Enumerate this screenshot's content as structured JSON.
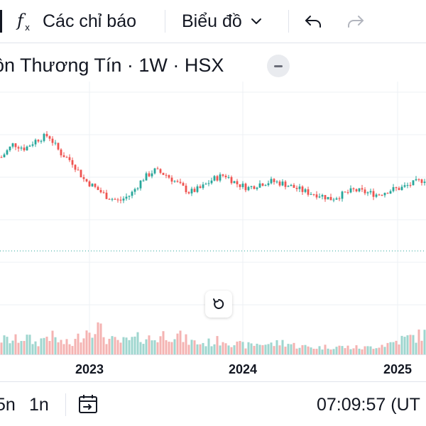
{
  "toolbar": {
    "indicators_label": "Các chỉ báo",
    "chart_type_label": "Biểu đồ"
  },
  "legend": {
    "title": "ồn Thương Tín · 1W · HSX"
  },
  "chart_data": {
    "type": "candlestick",
    "x_tick_labels": [
      "2023",
      "2024",
      "2025"
    ],
    "price_line": "dotted",
    "volume_bars": true,
    "colors": {
      "up": "#26a69a",
      "down": "#ef5350",
      "up_volume": "#9fd6cf",
      "down_volume": "#f4b3b2",
      "grid": "#eef0f4",
      "price_line": "#26a69a"
    },
    "price_path": [
      0.72,
      0.78,
      0.76,
      0.8,
      0.82,
      0.74,
      0.7,
      0.62,
      0.58,
      0.54,
      0.52,
      0.55,
      0.62,
      0.66,
      0.64,
      0.6,
      0.56,
      0.58,
      0.62,
      0.64,
      0.6,
      0.58,
      0.6,
      0.61,
      0.6,
      0.58,
      0.56,
      0.55,
      0.53,
      0.55,
      0.57,
      0.56,
      0.55,
      0.57,
      0.58,
      0.6,
      0.62
    ],
    "volume_path": [
      0.3,
      0.28,
      0.35,
      0.22,
      0.4,
      0.25,
      0.2,
      0.45,
      0.6,
      0.3,
      0.25,
      0.28,
      0.35,
      0.3,
      0.42,
      0.38,
      0.26,
      0.22,
      0.25,
      0.3,
      0.2,
      0.18,
      0.22,
      0.2,
      0.25,
      0.18,
      0.15,
      0.14,
      0.16,
      0.15,
      0.14,
      0.13,
      0.18,
      0.22,
      0.3,
      0.35,
      0.4
    ]
  },
  "bottombar": {
    "range_5m": "5n",
    "range_1y": "1n",
    "clock": "07:09:57 (UT"
  }
}
